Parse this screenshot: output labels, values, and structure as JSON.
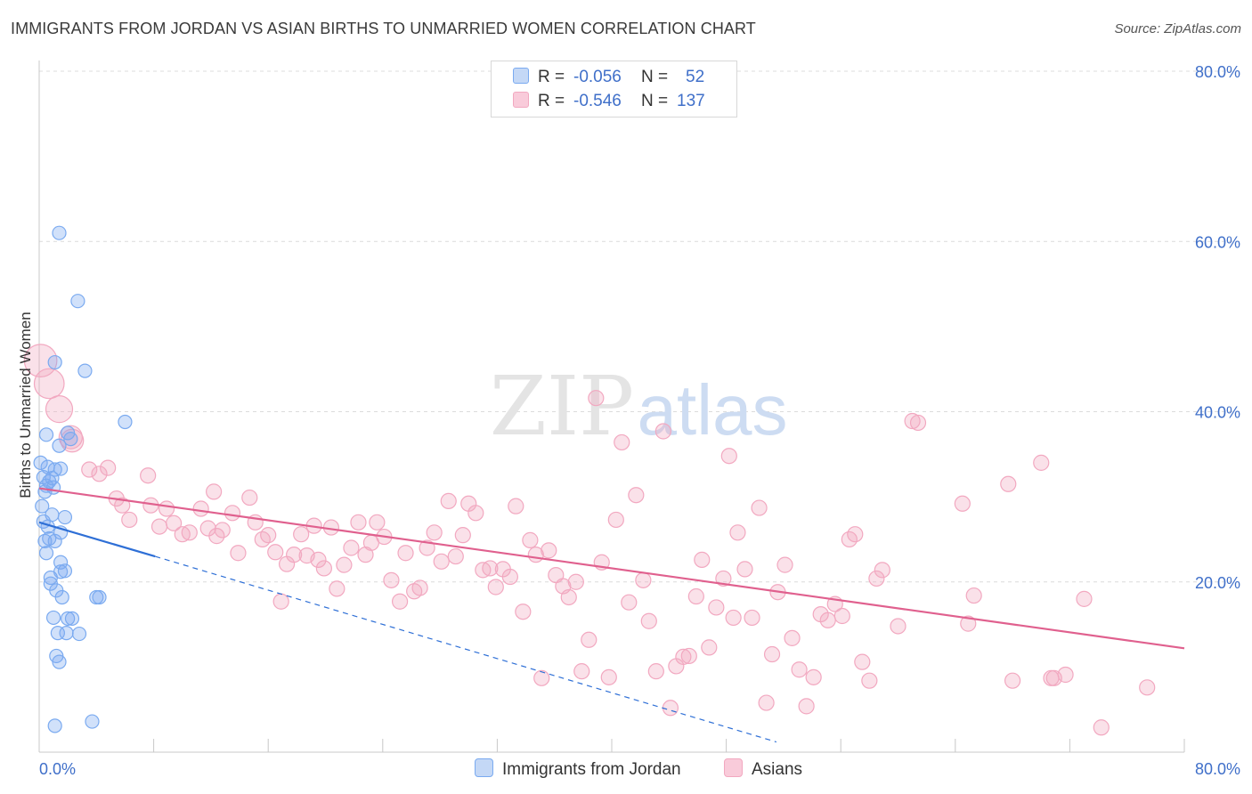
{
  "title": "IMMIGRANTS FROM JORDAN VS ASIAN BIRTHS TO UNMARRIED WOMEN CORRELATION CHART",
  "source": "Source: ZipAtlas.com",
  "watermark": {
    "zip": "ZIP",
    "atlas": "atlas"
  },
  "legend": {
    "series1": {
      "r_label": "R =",
      "r_value": "-0.056",
      "n_label": "N =",
      "n_value": "52"
    },
    "series2": {
      "r_label": "R =",
      "r_value": "-0.546",
      "n_label": "N =",
      "n_value": "137"
    }
  },
  "bottom_legend": {
    "series1": "Immigrants from Jordan",
    "series2": "Asians"
  },
  "chart_data": {
    "type": "scatter",
    "title": "IMMIGRANTS FROM JORDAN VS ASIAN BIRTHS TO UNMARRIED WOMEN CORRELATION CHART",
    "xlabel": "",
    "ylabel": "Births to Unmarried Women",
    "xlim": [
      0,
      80
    ],
    "ylim": [
      0,
      80
    ],
    "x_tick_labels": [
      "0.0%",
      "80.0%"
    ],
    "y_tick_labels": [
      {
        "value": 20,
        "label": "20.0%"
      },
      {
        "value": 40,
        "label": "40.0%"
      },
      {
        "value": 60,
        "label": "60.0%"
      },
      {
        "value": 80,
        "label": "80.0%"
      }
    ],
    "grid": true,
    "colors": {
      "series1": "#7aaaf0",
      "series1_line": "#2e6fd6",
      "series2": "#f2a8c0",
      "series2_line": "#e0608e",
      "tick_label": "#3f6fc9"
    },
    "series": [
      {
        "name": "Immigrants from Jordan",
        "trend": {
          "x0": 0,
          "y0": 27.0,
          "x1": 8.1,
          "y1": 23.0,
          "dashed_to_x": 51.5,
          "dashed_to_y": 1.2
        },
        "points": [
          [
            1.4,
            61.0
          ],
          [
            2.7,
            53.0
          ],
          [
            1.1,
            45.8
          ],
          [
            3.2,
            44.8
          ],
          [
            6.0,
            38.8
          ],
          [
            0.5,
            37.3
          ],
          [
            2.0,
            37.5
          ],
          [
            2.2,
            36.8
          ],
          [
            1.4,
            36.0
          ],
          [
            0.1,
            34.0
          ],
          [
            0.6,
            33.5
          ],
          [
            1.1,
            33.2
          ],
          [
            1.5,
            33.3
          ],
          [
            0.3,
            32.3
          ],
          [
            0.7,
            31.8
          ],
          [
            0.9,
            32.2
          ],
          [
            0.5,
            31.3
          ],
          [
            1.0,
            31.1
          ],
          [
            0.4,
            30.6
          ],
          [
            0.2,
            28.9
          ],
          [
            0.9,
            27.9
          ],
          [
            1.8,
            27.6
          ],
          [
            0.3,
            27.1
          ],
          [
            0.6,
            26.5
          ],
          [
            1.5,
            25.8
          ],
          [
            0.7,
            25.1
          ],
          [
            1.1,
            24.8
          ],
          [
            0.4,
            24.8
          ],
          [
            0.5,
            23.4
          ],
          [
            1.5,
            22.3
          ],
          [
            1.5,
            21.2
          ],
          [
            1.8,
            21.3
          ],
          [
            0.8,
            20.5
          ],
          [
            0.8,
            19.8
          ],
          [
            1.2,
            19.0
          ],
          [
            1.6,
            18.2
          ],
          [
            4.0,
            18.2
          ],
          [
            4.2,
            18.2
          ],
          [
            1.0,
            15.8
          ],
          [
            2.0,
            15.7
          ],
          [
            2.3,
            15.7
          ],
          [
            1.3,
            14.0
          ],
          [
            1.9,
            14.0
          ],
          [
            2.8,
            13.9
          ],
          [
            1.2,
            11.3
          ],
          [
            1.4,
            10.6
          ],
          [
            3.7,
            3.6
          ],
          [
            1.1,
            3.1
          ]
        ]
      },
      {
        "name": "Asians",
        "trend": {
          "x0": 0,
          "y0": 31.0,
          "x1": 80,
          "y1": 12.2
        },
        "points": [
          [
            0.1,
            46.0
          ],
          [
            0.7,
            43.3
          ],
          [
            1.4,
            40.3
          ],
          [
            2.2,
            37.0
          ],
          [
            2.3,
            36.6
          ],
          [
            3.5,
            33.2
          ],
          [
            4.8,
            33.4
          ],
          [
            4.2,
            32.7
          ],
          [
            5.4,
            29.8
          ],
          [
            5.8,
            29.0
          ],
          [
            6.3,
            27.3
          ],
          [
            7.6,
            32.5
          ],
          [
            7.8,
            29.0
          ],
          [
            8.4,
            26.5
          ],
          [
            8.9,
            28.6
          ],
          [
            9.4,
            26.9
          ],
          [
            10.0,
            25.6
          ],
          [
            10.5,
            25.8
          ],
          [
            11.3,
            28.6
          ],
          [
            11.8,
            26.3
          ],
          [
            12.2,
            30.6
          ],
          [
            12.4,
            25.4
          ],
          [
            12.8,
            26.1
          ],
          [
            13.5,
            28.1
          ],
          [
            13.9,
            23.4
          ],
          [
            14.7,
            29.9
          ],
          [
            15.1,
            27.0
          ],
          [
            15.6,
            25.0
          ],
          [
            16.0,
            25.5
          ],
          [
            16.5,
            23.5
          ],
          [
            16.9,
            17.7
          ],
          [
            17.3,
            22.1
          ],
          [
            17.8,
            23.2
          ],
          [
            18.3,
            25.6
          ],
          [
            18.7,
            23.1
          ],
          [
            19.2,
            26.6
          ],
          [
            19.5,
            22.6
          ],
          [
            19.9,
            21.6
          ],
          [
            20.4,
            26.4
          ],
          [
            20.8,
            19.2
          ],
          [
            21.3,
            22.0
          ],
          [
            21.8,
            24.0
          ],
          [
            22.3,
            27.0
          ],
          [
            22.8,
            23.2
          ],
          [
            23.2,
            24.6
          ],
          [
            23.6,
            27.0
          ],
          [
            24.1,
            25.3
          ],
          [
            24.6,
            20.2
          ],
          [
            25.2,
            17.7
          ],
          [
            25.6,
            23.4
          ],
          [
            26.2,
            18.9
          ],
          [
            26.6,
            19.3
          ],
          [
            27.1,
            24.0
          ],
          [
            27.6,
            25.8
          ],
          [
            28.1,
            22.4
          ],
          [
            28.6,
            29.5
          ],
          [
            29.1,
            23.0
          ],
          [
            29.6,
            25.5
          ],
          [
            30.0,
            29.2
          ],
          [
            30.5,
            28.1
          ],
          [
            31.0,
            21.4
          ],
          [
            31.5,
            21.6
          ],
          [
            31.9,
            19.4
          ],
          [
            32.4,
            21.5
          ],
          [
            32.9,
            20.6
          ],
          [
            33.3,
            28.9
          ],
          [
            33.8,
            16.5
          ],
          [
            34.3,
            24.9
          ],
          [
            34.7,
            23.2
          ],
          [
            35.1,
            8.7
          ],
          [
            35.6,
            23.7
          ],
          [
            36.1,
            20.8
          ],
          [
            36.6,
            19.5
          ],
          [
            37.0,
            18.2
          ],
          [
            37.5,
            20.0
          ],
          [
            37.9,
            9.5
          ],
          [
            38.4,
            13.2
          ],
          [
            38.9,
            41.6
          ],
          [
            39.3,
            22.3
          ],
          [
            39.8,
            8.8
          ],
          [
            40.3,
            27.3
          ],
          [
            40.7,
            36.4
          ],
          [
            41.2,
            17.6
          ],
          [
            41.7,
            30.2
          ],
          [
            42.2,
            20.2
          ],
          [
            42.6,
            15.4
          ],
          [
            43.1,
            9.5
          ],
          [
            43.6,
            37.7
          ],
          [
            44.1,
            5.2
          ],
          [
            44.5,
            10.1
          ],
          [
            45.0,
            11.2
          ],
          [
            45.4,
            11.3
          ],
          [
            45.9,
            18.3
          ],
          [
            46.3,
            22.6
          ],
          [
            46.8,
            12.3
          ],
          [
            47.3,
            17.0
          ],
          [
            47.8,
            20.4
          ],
          [
            48.2,
            34.8
          ],
          [
            48.5,
            15.8
          ],
          [
            48.8,
            25.8
          ],
          [
            49.3,
            21.5
          ],
          [
            49.8,
            15.8
          ],
          [
            50.3,
            28.7
          ],
          [
            50.8,
            5.8
          ],
          [
            51.2,
            11.5
          ],
          [
            51.6,
            18.8
          ],
          [
            52.1,
            22.0
          ],
          [
            52.6,
            13.4
          ],
          [
            53.1,
            9.7
          ],
          [
            53.6,
            5.4
          ],
          [
            54.1,
            8.8
          ],
          [
            54.6,
            16.2
          ],
          [
            55.1,
            15.5
          ],
          [
            55.6,
            17.4
          ],
          [
            56.1,
            16.0
          ],
          [
            56.6,
            25.0
          ],
          [
            57.0,
            25.6
          ],
          [
            57.5,
            10.6
          ],
          [
            58.0,
            8.4
          ],
          [
            58.5,
            20.4
          ],
          [
            58.9,
            21.4
          ],
          [
            60.0,
            14.8
          ],
          [
            61.0,
            38.9
          ],
          [
            61.4,
            38.7
          ],
          [
            64.5,
            29.2
          ],
          [
            64.9,
            15.1
          ],
          [
            65.3,
            18.4
          ],
          [
            67.7,
            31.5
          ],
          [
            68.0,
            8.4
          ],
          [
            70.0,
            34.0
          ],
          [
            70.7,
            8.7
          ],
          [
            70.9,
            8.7
          ],
          [
            71.7,
            9.1
          ],
          [
            73.0,
            18.0
          ],
          [
            74.2,
            2.9
          ],
          [
            77.4,
            7.6
          ]
        ]
      }
    ]
  }
}
